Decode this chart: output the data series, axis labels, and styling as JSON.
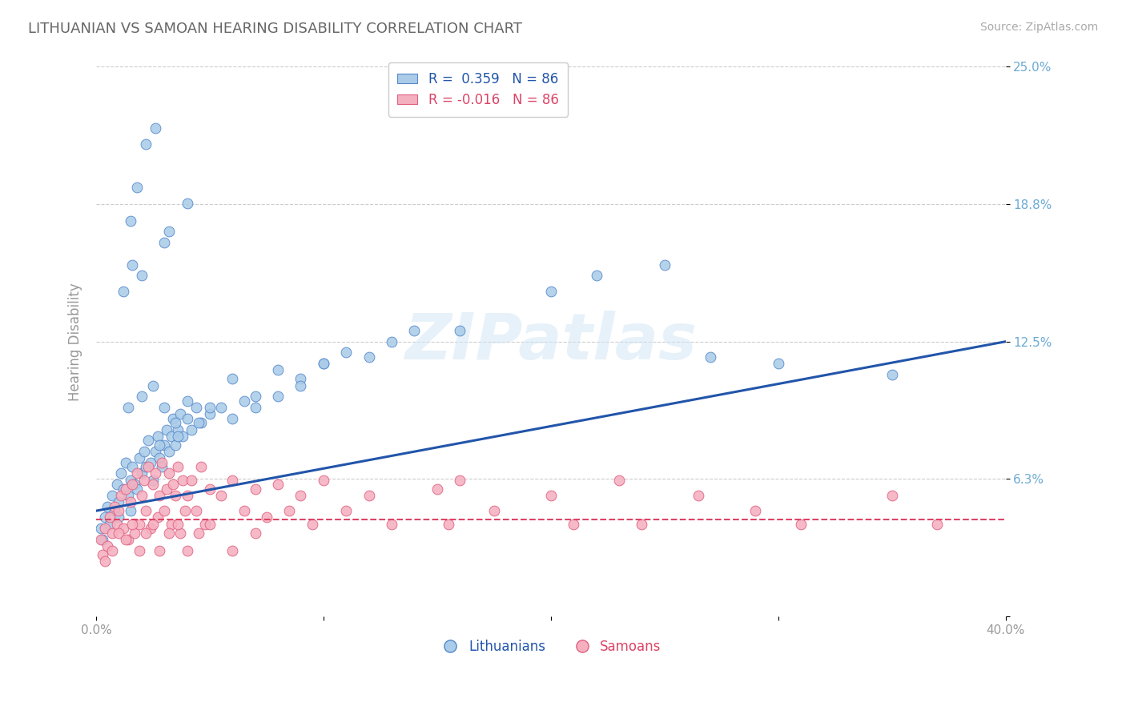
{
  "title": "LITHUANIAN VS SAMOAN HEARING DISABILITY CORRELATION CHART",
  "source_text": "Source: ZipAtlas.com",
  "ylabel": "Hearing Disability",
  "xmin": 0.0,
  "xmax": 0.4,
  "ymin": 0.0,
  "ymax": 0.25,
  "yticks": [
    0.0,
    0.0625,
    0.125,
    0.1875,
    0.25
  ],
  "ytick_labels": [
    "",
    "6.3%",
    "12.5%",
    "18.8%",
    "25.0%"
  ],
  "xticks": [
    0.0,
    0.1,
    0.2,
    0.3,
    0.4
  ],
  "xtick_labels": [
    "0.0%",
    "",
    "",
    "",
    "40.0%"
  ],
  "color_blue": "#AACCE8",
  "color_blue_edge": "#5588CC",
  "color_pink": "#F5B0C0",
  "color_pink_edge": "#E06080",
  "color_line_blue": "#2255AA",
  "color_line_pink": "#DD4466",
  "color_grid": "#CCCCCC",
  "color_title": "#666666",
  "color_ytick": "#6BAAD4",
  "color_xtick": "#999999",
  "background_color": "#FFFFFF",
  "watermark": "ZIPatlas",
  "legend_label_blue": "Lithuanians",
  "legend_label_pink": "Samoans",
  "blue_R": 0.359,
  "pink_R": -0.016,
  "N": 86,
  "blue_trend_start_y": 0.048,
  "blue_trend_end_y": 0.125,
  "pink_trend_start_y": 0.044,
  "pink_trend_end_y": 0.044,
  "blue_scatter_x": [
    0.002,
    0.003,
    0.004,
    0.005,
    0.006,
    0.007,
    0.008,
    0.009,
    0.01,
    0.01,
    0.011,
    0.012,
    0.013,
    0.014,
    0.015,
    0.015,
    0.016,
    0.017,
    0.018,
    0.019,
    0.02,
    0.021,
    0.022,
    0.023,
    0.024,
    0.025,
    0.026,
    0.027,
    0.028,
    0.029,
    0.03,
    0.031,
    0.032,
    0.033,
    0.034,
    0.035,
    0.036,
    0.037,
    0.038,
    0.04,
    0.042,
    0.044,
    0.046,
    0.05,
    0.055,
    0.06,
    0.065,
    0.07,
    0.08,
    0.09,
    0.1,
    0.11,
    0.12,
    0.13,
    0.14,
    0.16,
    0.2,
    0.22,
    0.25,
    0.27,
    0.3,
    0.35,
    0.014,
    0.02,
    0.025,
    0.03,
    0.035,
    0.04,
    0.05,
    0.06,
    0.07,
    0.08,
    0.09,
    0.1,
    0.015,
    0.018,
    0.022,
    0.026,
    0.032,
    0.04,
    0.012,
    0.016,
    0.02,
    0.03,
    0.028,
    0.036,
    0.045
  ],
  "blue_scatter_y": [
    0.04,
    0.035,
    0.045,
    0.05,
    0.042,
    0.055,
    0.048,
    0.06,
    0.052,
    0.045,
    0.065,
    0.058,
    0.07,
    0.055,
    0.062,
    0.048,
    0.068,
    0.06,
    0.058,
    0.072,
    0.065,
    0.075,
    0.068,
    0.08,
    0.07,
    0.062,
    0.075,
    0.082,
    0.072,
    0.068,
    0.078,
    0.085,
    0.075,
    0.082,
    0.09,
    0.078,
    0.085,
    0.092,
    0.082,
    0.09,
    0.085,
    0.095,
    0.088,
    0.092,
    0.095,
    0.09,
    0.098,
    0.095,
    0.1,
    0.108,
    0.115,
    0.12,
    0.118,
    0.125,
    0.13,
    0.13,
    0.148,
    0.155,
    0.16,
    0.118,
    0.115,
    0.11,
    0.095,
    0.1,
    0.105,
    0.095,
    0.088,
    0.098,
    0.095,
    0.108,
    0.1,
    0.112,
    0.105,
    0.115,
    0.18,
    0.195,
    0.215,
    0.222,
    0.175,
    0.188,
    0.148,
    0.16,
    0.155,
    0.17,
    0.078,
    0.082,
    0.088
  ],
  "pink_scatter_x": [
    0.002,
    0.003,
    0.004,
    0.005,
    0.006,
    0.007,
    0.008,
    0.009,
    0.01,
    0.011,
    0.012,
    0.013,
    0.014,
    0.015,
    0.016,
    0.017,
    0.018,
    0.019,
    0.02,
    0.021,
    0.022,
    0.023,
    0.024,
    0.025,
    0.026,
    0.027,
    0.028,
    0.029,
    0.03,
    0.031,
    0.032,
    0.033,
    0.034,
    0.035,
    0.036,
    0.037,
    0.038,
    0.039,
    0.04,
    0.042,
    0.044,
    0.046,
    0.048,
    0.05,
    0.055,
    0.06,
    0.065,
    0.07,
    0.075,
    0.08,
    0.085,
    0.09,
    0.095,
    0.1,
    0.11,
    0.12,
    0.13,
    0.15,
    0.155,
    0.16,
    0.175,
    0.2,
    0.21,
    0.23,
    0.24,
    0.265,
    0.29,
    0.31,
    0.35,
    0.37,
    0.004,
    0.007,
    0.01,
    0.013,
    0.016,
    0.019,
    0.022,
    0.025,
    0.028,
    0.032,
    0.036,
    0.04,
    0.045,
    0.05,
    0.06,
    0.07
  ],
  "pink_scatter_y": [
    0.035,
    0.028,
    0.04,
    0.032,
    0.045,
    0.038,
    0.05,
    0.042,
    0.048,
    0.055,
    0.04,
    0.058,
    0.035,
    0.052,
    0.06,
    0.038,
    0.065,
    0.042,
    0.055,
    0.062,
    0.048,
    0.068,
    0.04,
    0.06,
    0.065,
    0.045,
    0.055,
    0.07,
    0.048,
    0.058,
    0.065,
    0.042,
    0.06,
    0.055,
    0.068,
    0.038,
    0.062,
    0.048,
    0.055,
    0.062,
    0.048,
    0.068,
    0.042,
    0.058,
    0.055,
    0.062,
    0.048,
    0.058,
    0.045,
    0.06,
    0.048,
    0.055,
    0.042,
    0.062,
    0.048,
    0.055,
    0.042,
    0.058,
    0.042,
    0.062,
    0.048,
    0.055,
    0.042,
    0.062,
    0.042,
    0.055,
    0.048,
    0.042,
    0.055,
    0.042,
    0.025,
    0.03,
    0.038,
    0.035,
    0.042,
    0.03,
    0.038,
    0.042,
    0.03,
    0.038,
    0.042,
    0.03,
    0.038,
    0.042,
    0.03,
    0.038
  ]
}
